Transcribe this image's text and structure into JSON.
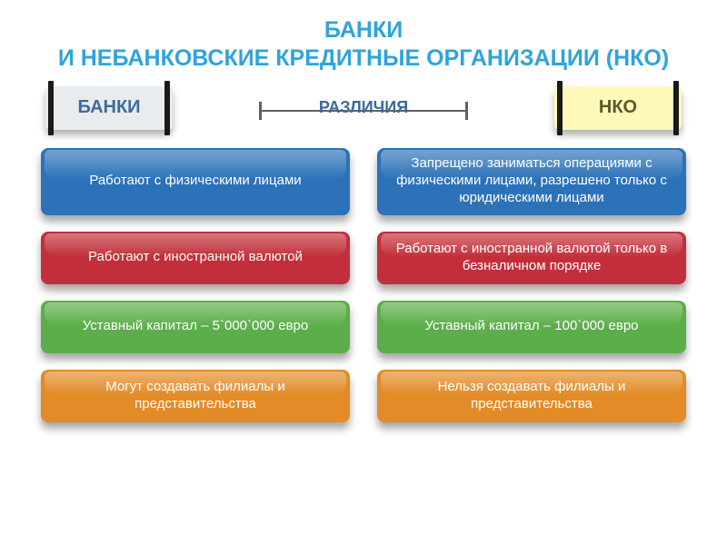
{
  "title": {
    "line1": "БАНКИ",
    "line2": "И НЕБАНКОВСКИЕ КРЕДИТНЫЕ ОРГАНИЗАЦИИ (НКО)",
    "color": "#2fa3dd"
  },
  "headers": {
    "left": {
      "label": "БАНКИ",
      "bg": "#e9ecef",
      "text": "#3c6aa0"
    },
    "right": {
      "label": "НКО",
      "bg": "#fef9b8",
      "text": "#5a5a2a"
    },
    "center": {
      "label": "РАЗЛИЧИЯ",
      "color": "#3c6aa0"
    }
  },
  "rows": {
    "heights": [
      74,
      58,
      58,
      58
    ],
    "colors": [
      "#2c72b8",
      "#c22f3a",
      "#5cae4a",
      "#e38b27"
    ],
    "left": [
      "Работают с физическими лицами",
      "Работают с иностранной валютой",
      "Уставный капитал – 5`000`000 евро",
      "Могут создавать филиалы и представительства"
    ],
    "right": [
      "Запрещено заниматься операциями с физическими лицами,  разрешено только с юридическими лицами",
      "Работают с иностранной валютой только в безналичном порядке",
      "Уставный капитал – 100`000 евро",
      "Нельзя создавать филиалы и представительства"
    ]
  }
}
